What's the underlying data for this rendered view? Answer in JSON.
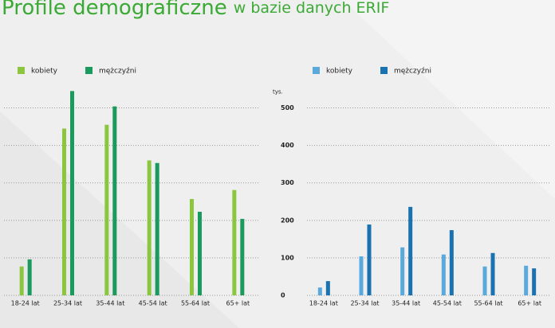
{
  "header": {
    "title": "Profile demograficzne",
    "subtitle": "w bazie danych ERIF"
  },
  "chart_data": [
    {
      "type": "bar",
      "categories": [
        "18-24 lat",
        "25-34 lat",
        "35-44 lat",
        "45-54 lat",
        "55-64 lat",
        "65+ lat"
      ],
      "series": [
        {
          "name": "kobiety",
          "color": "#8cc63f",
          "values": [
            77,
            445,
            455,
            360,
            257,
            281
          ]
        },
        {
          "name": "mężczyźni",
          "color": "#1a9a5c",
          "values": [
            96,
            545,
            504,
            353,
            223,
            204
          ]
        }
      ],
      "ylim": [
        0,
        550
      ],
      "yticks": [
        0,
        100,
        200,
        300,
        400,
        500
      ],
      "tick_labels": false,
      "grid": true
    },
    {
      "type": "bar",
      "categories": [
        "18-24 lat",
        "25-34 lat",
        "35-44 lat",
        "45-54 lat",
        "55-64 lat",
        "65+ lat"
      ],
      "series": [
        {
          "name": "kobiety",
          "color": "#5aa9dc",
          "values": [
            21,
            104,
            128,
            109,
            77,
            79
          ]
        },
        {
          "name": "mężczyźni",
          "color": "#1a72b0",
          "values": [
            38,
            189,
            236,
            174,
            113,
            72
          ]
        }
      ],
      "y_unit": "tys.",
      "ylim": [
        0,
        550
      ],
      "yticks": [
        0,
        100,
        200,
        300,
        400,
        500
      ],
      "tick_labels": true,
      "grid": true
    }
  ]
}
